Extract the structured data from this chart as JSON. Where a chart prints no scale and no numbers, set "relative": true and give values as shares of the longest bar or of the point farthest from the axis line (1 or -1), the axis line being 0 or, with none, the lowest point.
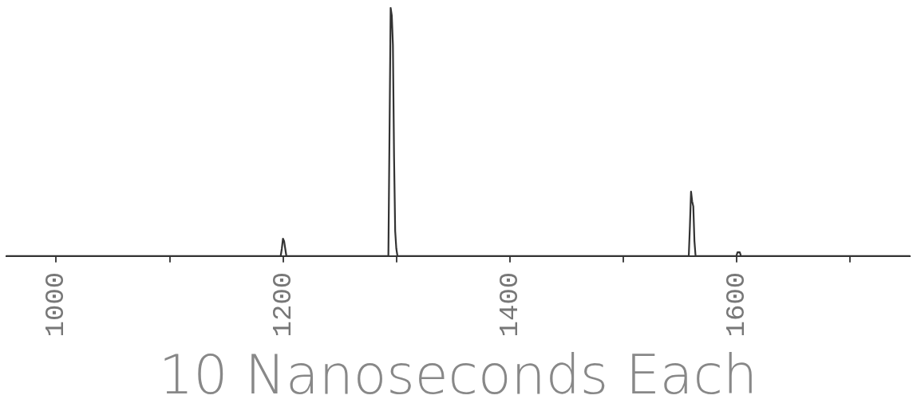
{
  "chart_data": {
    "type": "line",
    "relative": true,
    "xlabel": "10 Nanoseconds Each",
    "color": "#333333",
    "marker": "none",
    "grid": false,
    "x": [
      956,
      1198,
      1199,
      1200,
      1201,
      1202,
      1203,
      1293,
      1294,
      1295,
      1296,
      1297,
      1298,
      1299,
      1300,
      1301,
      1558,
      1559,
      1560,
      1561,
      1562,
      1563,
      1564,
      1600,
      1601,
      1603,
      1604,
      1753
    ],
    "values": [
      0,
      0,
      0.03,
      0.07,
      0.06,
      0.03,
      0,
      0,
      0.5,
      1,
      0.97,
      0.85,
      0.4,
      0.1,
      0.03,
      0,
      0,
      0.12,
      0.26,
      0.22,
      0.2,
      0.06,
      0,
      0,
      0.015,
      0.015,
      0,
      0
    ],
    "xlim": [
      956,
      1753
    ],
    "xticks": [
      1000,
      {
        "value": 1100,
        "label": null
      },
      1200,
      {
        "value": 1300,
        "label": null
      },
      1400,
      {
        "value": 1500,
        "label": null
      },
      1600,
      {
        "value": 1700,
        "label": null
      }
    ]
  }
}
